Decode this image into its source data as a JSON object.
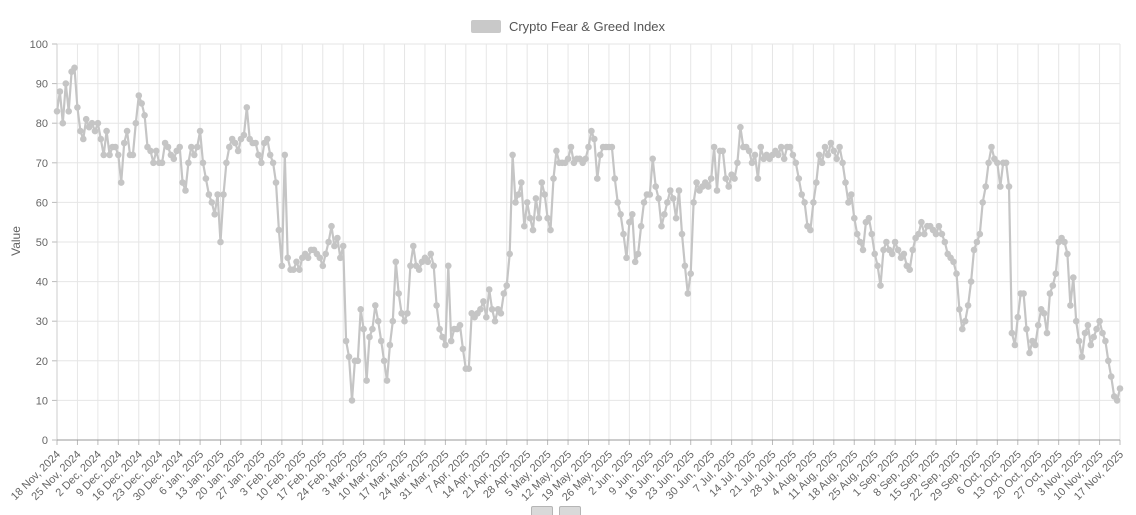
{
  "legend": {
    "label": "Crypto Fear & Greed Index"
  },
  "colors": {
    "series": "#c5c5c5",
    "legend_swatch": "#c9c9c9",
    "grid": "#e6e6e6",
    "axis": "#999999",
    "spine": "#cccccc",
    "tick": "#bbbbbb",
    "text": "#666666"
  },
  "chart_data": {
    "type": "line",
    "title": "Crypto Fear & Greed Index",
    "xlabel": "",
    "ylabel": "Value",
    "ylim": [
      0,
      100
    ],
    "y_ticks": [
      0,
      10,
      20,
      30,
      40,
      50,
      60,
      70,
      80,
      90,
      100
    ],
    "grid": true,
    "legend_position": "top-center",
    "marker": "circle",
    "start_date": "18 Nov, 2024",
    "end_date": "17 Nov, 2025",
    "tick_interval_days": 7,
    "x_tick_labels": [
      "18 Nov, 2024",
      "25 Nov, 2024",
      "2 Dec, 2024",
      "9 Dec, 2024",
      "16 Dec, 2024",
      "23 Dec, 2024",
      "30 Dec, 2024",
      "6 Jan, 2025",
      "13 Jan, 2025",
      "20 Jan, 2025",
      "27 Jan, 2025",
      "3 Feb, 2025",
      "10 Feb, 2025",
      "17 Feb, 2025",
      "24 Feb, 2025",
      "3 Mar, 2025",
      "10 Mar, 2025",
      "17 Mar, 2025",
      "24 Mar, 2025",
      "31 Mar, 2025",
      "7 Apr, 2025",
      "14 Apr, 2025",
      "21 Apr, 2025",
      "28 Apr, 2025",
      "5 May, 2025",
      "12 May, 2025",
      "19 May, 2025",
      "26 May, 2025",
      "2 Jun, 2025",
      "9 Jun, 2025",
      "16 Jun, 2025",
      "23 Jun, 2025",
      "30 Jun, 2025",
      "7 Jul, 2025",
      "14 Jul, 2025",
      "21 Jul, 2025",
      "28 Jul, 2025",
      "4 Aug, 2025",
      "11 Aug, 2025",
      "18 Aug, 2025",
      "25 Aug, 2025",
      "1 Sep, 2025",
      "8 Sep, 2025",
      "15 Sep, 2025",
      "22 Sep, 2025",
      "29 Sep, 2025",
      "6 Oct, 2025",
      "13 Oct, 2025",
      "20 Oct, 2025",
      "27 Oct, 2025",
      "3 Nov, 2025",
      "10 Nov, 2025",
      "17 Nov, 2025"
    ],
    "values": [
      83,
      88,
      80,
      90,
      83,
      93,
      94,
      84,
      78,
      76,
      81,
      79,
      80,
      78,
      80,
      76,
      72,
      78,
      72,
      74,
      74,
      72,
      65,
      75,
      78,
      72,
      72,
      80,
      87,
      85,
      82,
      74,
      73,
      70,
      73,
      70,
      70,
      75,
      74,
      72,
      71,
      73,
      74,
      65,
      63,
      70,
      74,
      72,
      74,
      78,
      70,
      66,
      62,
      60,
      57,
      62,
      50,
      62,
      70,
      74,
      76,
      75,
      73,
      76,
      77,
      84,
      76,
      75,
      75,
      72,
      70,
      75,
      76,
      72,
      70,
      65,
      53,
      44,
      72,
      46,
      43,
      43,
      45,
      43,
      46,
      47,
      46,
      48,
      48,
      47,
      46,
      44,
      47,
      50,
      54,
      49,
      51,
      46,
      49,
      25,
      21,
      10,
      20,
      20,
      33,
      28,
      15,
      26,
      28,
      34,
      30,
      25,
      20,
      15,
      24,
      30,
      45,
      37,
      32,
      30,
      32,
      44,
      49,
      44,
      43,
      45,
      46,
      45,
      47,
      44,
      34,
      28,
      26,
      24,
      44,
      25,
      28,
      28,
      29,
      23,
      18,
      18,
      32,
      31,
      32,
      33,
      35,
      31,
      38,
      33,
      30,
      33,
      32,
      37,
      39,
      47,
      72,
      60,
      62,
      65,
      54,
      60,
      56,
      53,
      61,
      56,
      65,
      62,
      56,
      53,
      66,
      73,
      70,
      70,
      70,
      71,
      74,
      70,
      71,
      71,
      70,
      71,
      74,
      78,
      76,
      66,
      72,
      74,
      74,
      74,
      74,
      66,
      60,
      57,
      52,
      46,
      55,
      57,
      45,
      47,
      54,
      60,
      62,
      62,
      71,
      64,
      61,
      54,
      57,
      60,
      63,
      61,
      56,
      63,
      52,
      44,
      37,
      42,
      60,
      65,
      63,
      64,
      65,
      64,
      66,
      74,
      63,
      73,
      73,
      66,
      64,
      67,
      66,
      70,
      79,
      74,
      74,
      73,
      70,
      72,
      66,
      74,
      71,
      72,
      71,
      72,
      73,
      72,
      74,
      71,
      74,
      74,
      72,
      70,
      66,
      62,
      60,
      54,
      53,
      60,
      65,
      72,
      70,
      74,
      72,
      75,
      73,
      71,
      74,
      70,
      65,
      60,
      62,
      56,
      52,
      50,
      48,
      55,
      56,
      52,
      47,
      44,
      39,
      48,
      50,
      48,
      47,
      50,
      48,
      46,
      47,
      44,
      43,
      48,
      51,
      52,
      55,
      52,
      54,
      54,
      53,
      52,
      54,
      52,
      50,
      47,
      46,
      45,
      42,
      33,
      28,
      30,
      34,
      40,
      48,
      50,
      52,
      60,
      64,
      70,
      74,
      71,
      70,
      64,
      70,
      70,
      64,
      27,
      24,
      31,
      37,
      37,
      28,
      22,
      25,
      24,
      29,
      33,
      32,
      27,
      37,
      39,
      42,
      50,
      51,
      50,
      47,
      34,
      41,
      30,
      25,
      21,
      27,
      29,
      24,
      26,
      28,
      30,
      27,
      25,
      20,
      16,
      11,
      10,
      13
    ]
  }
}
